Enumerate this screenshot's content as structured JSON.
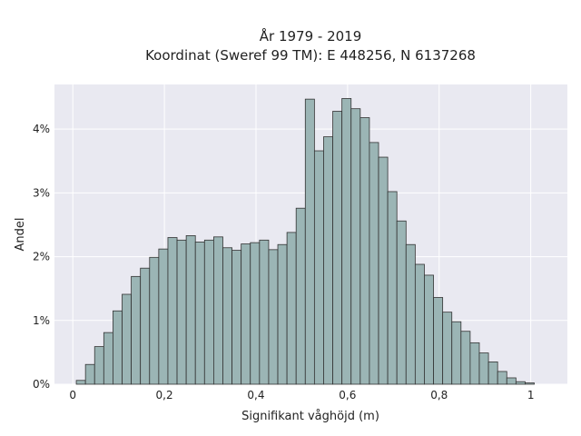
{
  "chart_data": {
    "type": "bar",
    "title_line1": "År 1979 - 2019",
    "title_line2": "Koordinat (Sweref 99 TM): E 448256, N 6137268",
    "xlabel": "Signifikant våghöjd (m)",
    "ylabel": "Andel",
    "xlim": [
      -0.04,
      1.08
    ],
    "ylim": [
      0,
      0.047
    ],
    "x_ticks": [
      0,
      0.2,
      0.4,
      0.6,
      0.8,
      1.0
    ],
    "x_tick_labels": [
      "0",
      "0,2",
      "0,4",
      "0,6",
      "0,8",
      "1"
    ],
    "y_ticks": [
      0,
      0.01,
      0.02,
      0.03,
      0.04
    ],
    "y_tick_labels": [
      "0%",
      "1%",
      "2%",
      "3%",
      "4%"
    ],
    "bin_start": 0.0077,
    "bin_width": 0.02,
    "values": [
      0.0006,
      0.0031,
      0.0059,
      0.0081,
      0.0115,
      0.0141,
      0.0169,
      0.0182,
      0.0199,
      0.0212,
      0.023,
      0.0226,
      0.0233,
      0.0223,
      0.0226,
      0.0231,
      0.0214,
      0.021,
      0.022,
      0.0222,
      0.0226,
      0.0211,
      0.0219,
      0.0238,
      0.0276,
      0.0447,
      0.0366,
      0.0388,
      0.0428,
      0.0448,
      0.0432,
      0.0418,
      0.0379,
      0.0356,
      0.0302,
      0.0256,
      0.0219,
      0.0188,
      0.0171,
      0.0136,
      0.0113,
      0.0098,
      0.0083,
      0.0065,
      0.0049,
      0.0035,
      0.002,
      0.001,
      0.0004,
      0.0002
    ],
    "grid": true,
    "colors": {
      "bar_fill": "#9bb5b5",
      "bar_edge": "#333333",
      "plot_bg": "#e9e9f1",
      "grid": "#ffffff"
    }
  }
}
